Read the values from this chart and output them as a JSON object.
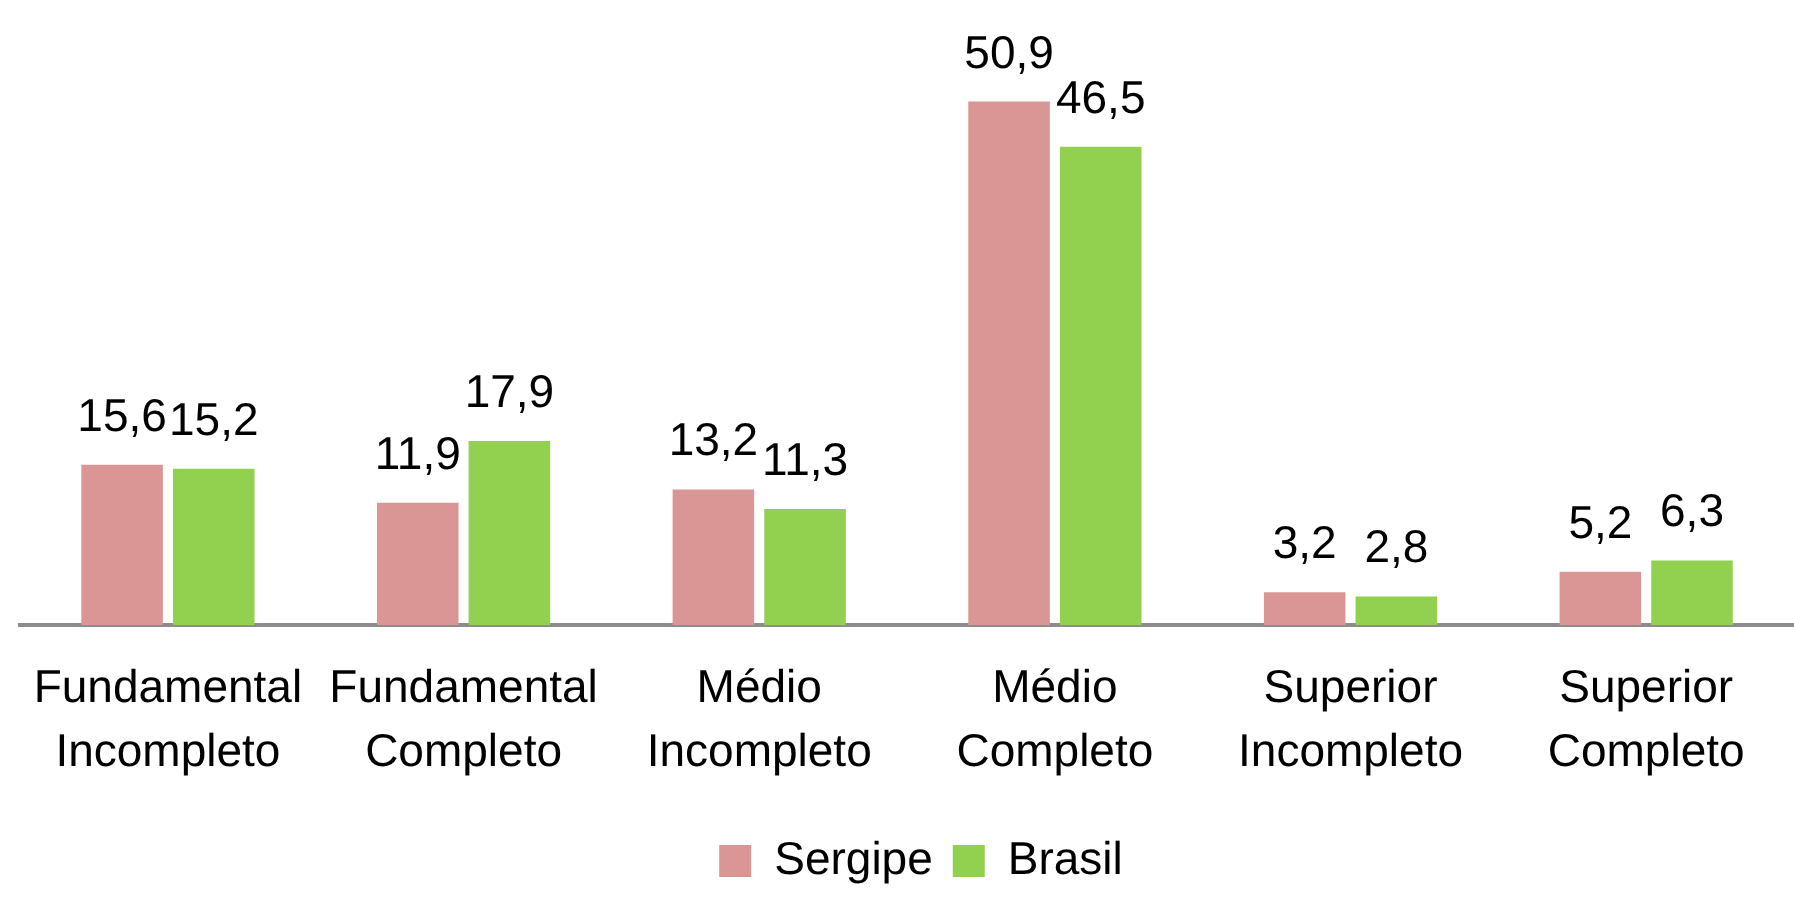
{
  "chart_data": {
    "type": "bar",
    "categories": [
      "Fundamental Incompleto",
      "Fundamental Completo",
      "Médio Incompleto",
      "Médio Completo",
      "Superior Incompleto",
      "Superior Completo"
    ],
    "series": [
      {
        "name": "Sergipe",
        "color": "#d99694",
        "values": [
          15.6,
          11.9,
          13.2,
          50.9,
          3.2,
          5.2
        ],
        "value_labels": [
          "15,6",
          "11,9",
          "13,2",
          "50,9",
          "3,2",
          "5,2"
        ]
      },
      {
        "name": "Brasil",
        "color": "#92d050",
        "values": [
          15.2,
          17.9,
          11.3,
          46.5,
          2.8,
          6.3
        ],
        "value_labels": [
          "15,2",
          "17,9",
          "11,3",
          "46,5",
          "2,8",
          "6,3"
        ]
      }
    ],
    "legend": "bottom",
    "tick_labels": "x"
  }
}
